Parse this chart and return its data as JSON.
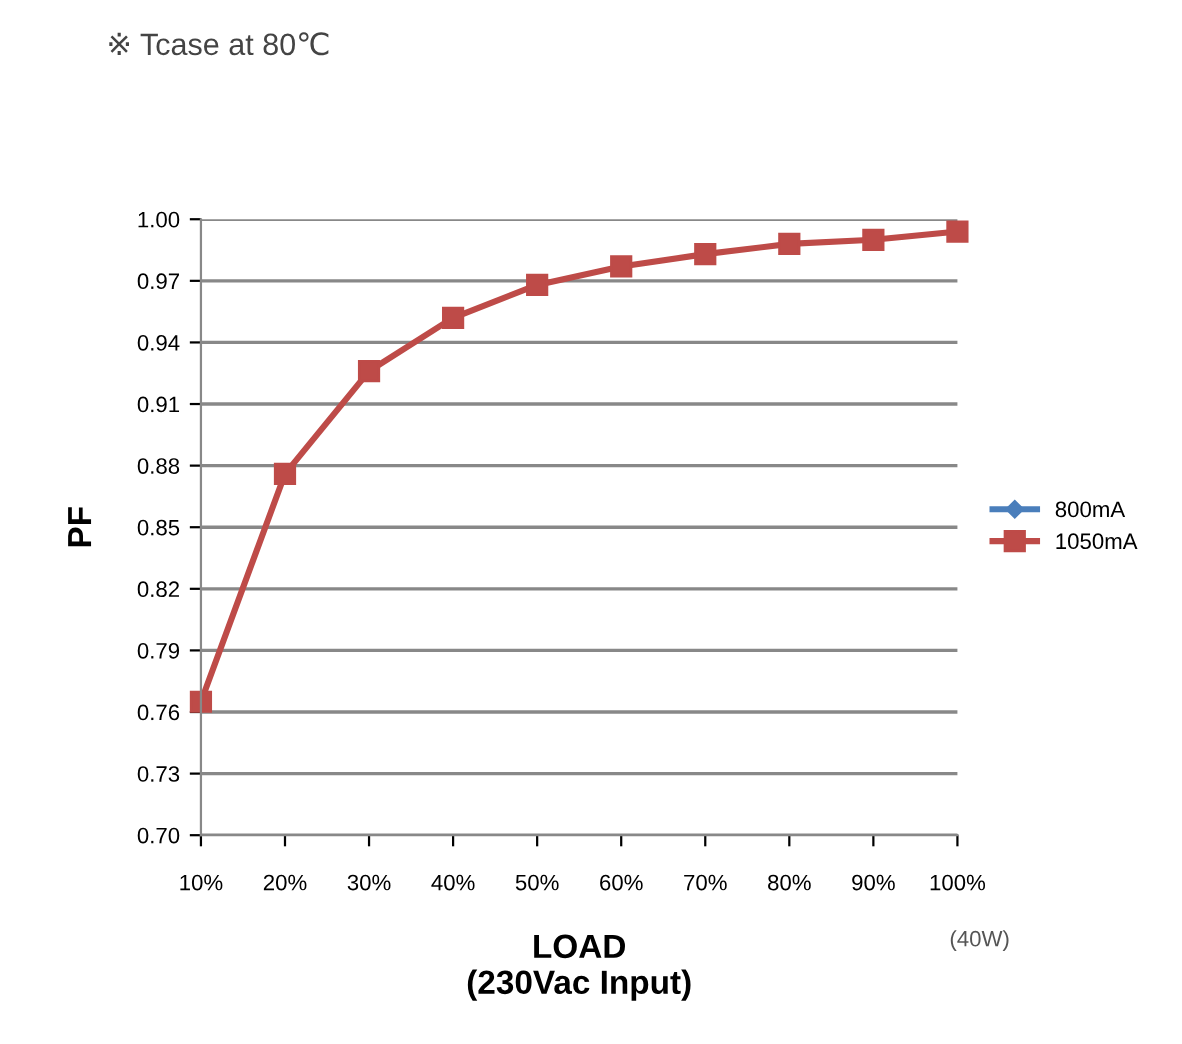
{
  "chart_data": {
    "type": "line",
    "title": "※ Tcase at 80℃",
    "xlabel": "LOAD\n(230Vac Input)",
    "ylabel": "PF",
    "categories": [
      "10%",
      "20%",
      "30%",
      "40%",
      "50%",
      "60%",
      "70%",
      "80%",
      "90%",
      "100%"
    ],
    "series": [
      {
        "name": "800mA",
        "color": "#4a7ebb",
        "marker": "diamond",
        "values": [
          null,
          null,
          null,
          null,
          null,
          null,
          null,
          null,
          null,
          null
        ]
      },
      {
        "name": "1050mA",
        "color": "#be4b48",
        "marker": "square",
        "values": [
          0.765,
          0.876,
          0.926,
          0.952,
          0.968,
          0.977,
          0.983,
          0.988,
          0.99,
          0.994
        ]
      }
    ],
    "ylim": [
      0.7,
      1.0
    ],
    "yticks": [
      {
        "value": 0.7,
        "label": "0.70"
      },
      0.73,
      0.76,
      0.79,
      0.82,
      0.85,
      0.88,
      0.91,
      0.94,
      0.97,
      {
        "value": 1.0,
        "label": "1.00"
      }
    ],
    "annotations": [
      "(40W)"
    ],
    "grid": "y",
    "legend": "right",
    "line_style": "solid"
  }
}
